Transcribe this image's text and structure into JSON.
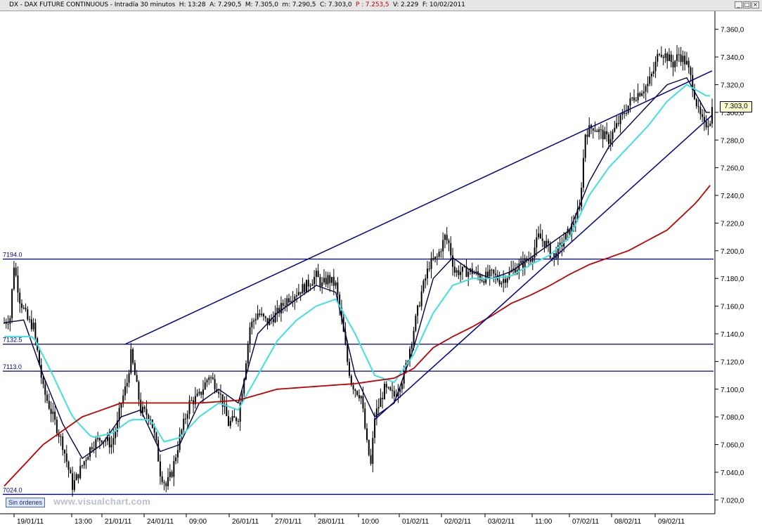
{
  "title": {
    "symbol": "DX - DAX FUTURE CONTINUOUS",
    "interval": "Intradía 30 minutos",
    "h": "H: 13:28",
    "a": "A: 7.290,5",
    "max": "M: 7.305,0",
    "min": "m: 7.290,5",
    "close": "C: 7.303,0",
    "p": "P : 7.253,5",
    "v": "V: 2.229",
    "f": "F: 10/02/2011"
  },
  "window_buttons": [
    "_",
    "□",
    "×"
  ],
  "toolbar": {
    "sin_ordenes": "Sin órdenes"
  },
  "watermark": "www.visualchart.com",
  "last_price_label": "7.303,0",
  "colors": {
    "candles": "#000000",
    "sma_fast": "#000040",
    "sma_mid": "#40e0e0",
    "sma_slow": "#c00000",
    "trendlines": "#00008b",
    "levels": "#00008b"
  },
  "chart_data": {
    "type": "candlestick",
    "ylim": [
      7010,
      7370
    ],
    "y_ticks": [
      "7.020,0",
      "7.040,0",
      "7.060,0",
      "7.080,0",
      "7.100,0",
      "7.120,0",
      "7.140,0",
      "7.160,0",
      "7.180,0",
      "7.200,0",
      "7.220,0",
      "7.240,0",
      "7.260,0",
      "7.280,0",
      "7.300,0",
      "7.320,0",
      "7.340,0",
      "7.360,0"
    ],
    "x_ticks": [
      "19/01/11",
      "13:00",
      "21/01/11",
      "24/01/11",
      "09:00",
      "26/01/11",
      "27/01/11",
      "28/01/11",
      "10:00",
      "01/02/11",
      "02/02/11",
      "03/02/11",
      "11:00",
      "07/02/11",
      "08/02/11",
      "09/02/11"
    ],
    "horizontal_levels": [
      {
        "label": "7194.0",
        "value": 7194.0
      },
      {
        "label": "7132.5",
        "value": 7132.5
      },
      {
        "label": "7113.0",
        "value": 7113.0
      },
      {
        "label": "7024.0",
        "value": 7024.0
      }
    ],
    "close_path": [
      [
        0,
        7148
      ],
      [
        3,
        7152
      ],
      [
        5,
        7190
      ],
      [
        8,
        7165
      ],
      [
        12,
        7150
      ],
      [
        15,
        7145
      ],
      [
        20,
        7100
      ],
      [
        25,
        7080
      ],
      [
        30,
        7060
      ],
      [
        35,
        7030
      ],
      [
        40,
        7045
      ],
      [
        45,
        7060
      ],
      [
        50,
        7065
      ],
      [
        55,
        7060
      ],
      [
        58,
        7075
      ],
      [
        60,
        7090
      ],
      [
        63,
        7105
      ],
      [
        65,
        7125
      ],
      [
        67,
        7110
      ],
      [
        70,
        7085
      ],
      [
        75,
        7080
      ],
      [
        78,
        7060
      ],
      [
        80,
        7040
      ],
      [
        83,
        7030
      ],
      [
        86,
        7040
      ],
      [
        90,
        7065
      ],
      [
        95,
        7090
      ],
      [
        100,
        7095
      ],
      [
        105,
        7110
      ],
      [
        110,
        7100
      ],
      [
        115,
        7075
      ],
      [
        120,
        7080
      ],
      [
        123,
        7110
      ],
      [
        126,
        7145
      ],
      [
        130,
        7155
      ],
      [
        135,
        7148
      ],
      [
        140,
        7155
      ],
      [
        145,
        7165
      ],
      [
        150,
        7170
      ],
      [
        155,
        7175
      ],
      [
        160,
        7182
      ],
      [
        163,
        7175
      ],
      [
        166,
        7180
      ],
      [
        170,
        7175
      ],
      [
        173,
        7150
      ],
      [
        176,
        7120
      ],
      [
        178,
        7105
      ],
      [
        180,
        7100
      ],
      [
        183,
        7095
      ],
      [
        186,
        7060
      ],
      [
        188,
        7045
      ],
      [
        190,
        7080
      ],
      [
        195,
        7100
      ],
      [
        200,
        7095
      ],
      [
        205,
        7110
      ],
      [
        208,
        7130
      ],
      [
        211,
        7150
      ],
      [
        214,
        7170
      ],
      [
        218,
        7190
      ],
      [
        222,
        7195
      ],
      [
        226,
        7210
      ],
      [
        228,
        7205
      ],
      [
        231,
        7185
      ],
      [
        235,
        7185
      ],
      [
        240,
        7185
      ],
      [
        245,
        7180
      ],
      [
        250,
        7183
      ],
      [
        255,
        7178
      ],
      [
        260,
        7185
      ],
      [
        265,
        7190
      ],
      [
        270,
        7195
      ],
      [
        274,
        7210
      ],
      [
        278,
        7205
      ],
      [
        281,
        7195
      ],
      [
        284,
        7200
      ],
      [
        288,
        7210
      ],
      [
        292,
        7220
      ],
      [
        295,
        7230
      ],
      [
        298,
        7285
      ],
      [
        302,
        7290
      ],
      [
        306,
        7285
      ],
      [
        310,
        7280
      ],
      [
        314,
        7290
      ],
      [
        318,
        7300
      ],
      [
        322,
        7310
      ],
      [
        326,
        7315
      ],
      [
        330,
        7320
      ],
      [
        333,
        7330
      ],
      [
        336,
        7345
      ],
      [
        340,
        7340
      ],
      [
        343,
        7335
      ],
      [
        346,
        7342
      ],
      [
        350,
        7335
      ],
      [
        353,
        7320
      ],
      [
        356,
        7300
      ],
      [
        359,
        7290
      ],
      [
        362,
        7295
      ],
      [
        363,
        7303
      ]
    ],
    "series": [
      {
        "name": "SMA fast",
        "values": [
          [
            0,
            7148
          ],
          [
            10,
            7150
          ],
          [
            20,
            7110
          ],
          [
            30,
            7075
          ],
          [
            40,
            7050
          ],
          [
            50,
            7060
          ],
          [
            60,
            7080
          ],
          [
            70,
            7085
          ],
          [
            80,
            7055
          ],
          [
            90,
            7060
          ],
          [
            100,
            7090
          ],
          [
            110,
            7100
          ],
          [
            120,
            7090
          ],
          [
            130,
            7140
          ],
          [
            140,
            7155
          ],
          [
            150,
            7165
          ],
          [
            160,
            7175
          ],
          [
            170,
            7170
          ],
          [
            180,
            7110
          ],
          [
            190,
            7080
          ],
          [
            200,
            7090
          ],
          [
            210,
            7130
          ],
          [
            220,
            7180
          ],
          [
            230,
            7195
          ],
          [
            240,
            7185
          ],
          [
            250,
            7180
          ],
          [
            260,
            7185
          ],
          [
            270,
            7195
          ],
          [
            280,
            7205
          ],
          [
            290,
            7215
          ],
          [
            300,
            7250
          ],
          [
            310,
            7275
          ],
          [
            320,
            7290
          ],
          [
            330,
            7305
          ],
          [
            340,
            7320
          ],
          [
            350,
            7325
          ],
          [
            360,
            7300
          ]
        ]
      },
      {
        "name": "SMA mid",
        "values": [
          [
            0,
            7138
          ],
          [
            15,
            7138
          ],
          [
            25,
            7110
          ],
          [
            35,
            7080
          ],
          [
            45,
            7065
          ],
          [
            55,
            7068
          ],
          [
            65,
            7078
          ],
          [
            75,
            7078
          ],
          [
            82,
            7062
          ],
          [
            90,
            7065
          ],
          [
            100,
            7080
          ],
          [
            110,
            7090
          ],
          [
            120,
            7085
          ],
          [
            130,
            7110
          ],
          [
            140,
            7135
          ],
          [
            150,
            7150
          ],
          [
            160,
            7160
          ],
          [
            170,
            7165
          ],
          [
            180,
            7140
          ],
          [
            190,
            7110
          ],
          [
            200,
            7105
          ],
          [
            210,
            7125
          ],
          [
            220,
            7155
          ],
          [
            230,
            7175
          ],
          [
            240,
            7180
          ],
          [
            250,
            7180
          ],
          [
            260,
            7182
          ],
          [
            270,
            7190
          ],
          [
            280,
            7197
          ],
          [
            290,
            7210
          ],
          [
            300,
            7240
          ],
          [
            310,
            7260
          ],
          [
            320,
            7275
          ],
          [
            330,
            7290
          ],
          [
            340,
            7308
          ],
          [
            350,
            7320
          ],
          [
            360,
            7312
          ]
        ]
      },
      {
        "name": "SMA slow",
        "values": [
          [
            0,
            7030
          ],
          [
            20,
            7060
          ],
          [
            40,
            7080
          ],
          [
            60,
            7090
          ],
          [
            80,
            7090
          ],
          [
            100,
            7090
          ],
          [
            120,
            7092
          ],
          [
            140,
            7100
          ],
          [
            160,
            7102
          ],
          [
            180,
            7104
          ],
          [
            200,
            7108
          ],
          [
            210,
            7115
          ],
          [
            220,
            7130
          ],
          [
            230,
            7138
          ],
          [
            240,
            7145
          ],
          [
            250,
            7153
          ],
          [
            260,
            7162
          ],
          [
            270,
            7168
          ],
          [
            280,
            7175
          ],
          [
            290,
            7183
          ],
          [
            300,
            7190
          ],
          [
            320,
            7200
          ],
          [
            340,
            7215
          ],
          [
            355,
            7235
          ],
          [
            363,
            7249
          ]
        ]
      }
    ],
    "trendlines": [
      {
        "from": [
          62,
          7132.5
        ],
        "to": [
          363,
          7330
        ]
      },
      {
        "from": [
          190,
          7078
        ],
        "to": [
          363,
          7298
        ]
      }
    ]
  }
}
